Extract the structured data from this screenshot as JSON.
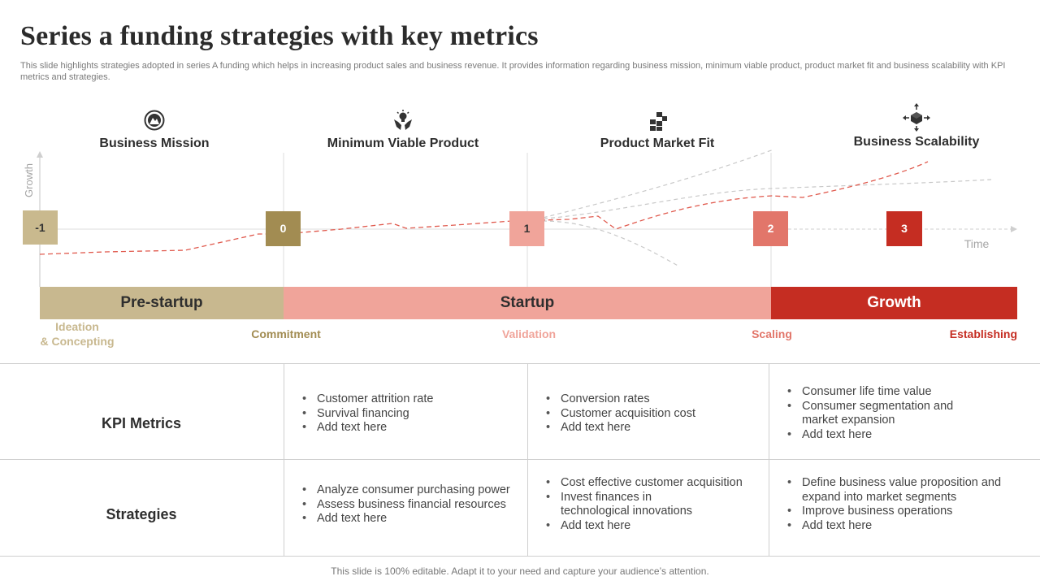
{
  "header": {
    "title": "Series a funding strategies with key metrics",
    "subtitle": "This slide highlights strategies adopted in series A funding which helps in increasing product sales and business revenue. It provides information regarding business mission, minimum viable product, product market fit and business scalability with KPI metrics and strategies."
  },
  "stages": [
    {
      "label": "Business Mission",
      "icon": "compass-icon"
    },
    {
      "label": "Minimum Viable Product",
      "icon": "hands-bulb-icon"
    },
    {
      "label": "Product Market Fit",
      "icon": "blocks-icon"
    },
    {
      "label": "Business Scalability",
      "icon": "cube-arrows-icon"
    }
  ],
  "axes": {
    "y_label": "Growth",
    "x_label": "Time"
  },
  "markers": [
    {
      "label": "-1",
      "color": "#c9b98e"
    },
    {
      "label": "0",
      "color": "#a28c52"
    },
    {
      "label": "1",
      "color": "#f0a49a"
    },
    {
      "label": "2",
      "color": "#e2766a"
    },
    {
      "label": "3",
      "color": "#c52d22"
    }
  ],
  "phases": [
    {
      "label": "Pre-startup",
      "color": "#c8b88f",
      "text_color": "#2e2e2e"
    },
    {
      "label": "Startup",
      "color": "#f0a49a",
      "text_color": "#2e2e2e"
    },
    {
      "label": "Growth",
      "color": "#c52d22",
      "text_color": "#ffffff"
    }
  ],
  "milestones": [
    {
      "line1": "Ideation",
      "line2": "& Concepting",
      "color": "#c8b88f"
    },
    {
      "line1": "Commitment",
      "color": "#a28c52"
    },
    {
      "line1": "Validation",
      "color": "#f0a49a"
    },
    {
      "line1": "Scaling",
      "color": "#e2766a"
    },
    {
      "line1": "Establishing",
      "color": "#c52d22"
    }
  ],
  "table": {
    "kpi": {
      "label": "KPI Metrics",
      "cols": [
        [
          "Customer attrition rate",
          "Survival financing",
          "Add text here"
        ],
        [
          "Conversion rates",
          "Customer acquisition cost",
          "Add text here"
        ],
        [
          "Consumer life time value",
          "Consumer segmentation and market expansion",
          "Add text here"
        ]
      ]
    },
    "strategies": {
      "label": "Strategies",
      "cols": [
        [
          "Analyze consumer purchasing power",
          "Assess business financial resources",
          "Add text here"
        ],
        [
          "Cost effective customer acquisition",
          "Invest finances in technological innovations",
          "Add text here"
        ],
        [
          "Define business value proposition and expand into market segments",
          "Improve business operations",
          "Add text here"
        ]
      ]
    }
  },
  "footer": "This slide is 100% editable. Adapt it to your need and capture your audience’s attention."
}
